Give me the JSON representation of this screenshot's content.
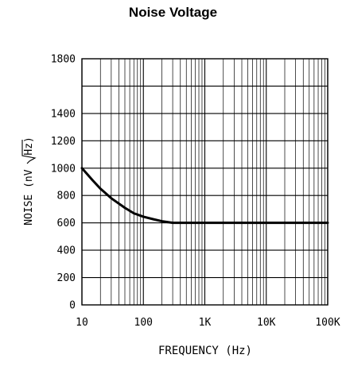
{
  "chart_data": {
    "type": "line",
    "title": "Noise Voltage",
    "xlabel": "FREQUENCY (Hz)",
    "ylabel_prefix": "NOISE (nV ",
    "ylabel_radicand": "Hz",
    "ylabel_suffix": ")",
    "x_scale": "log",
    "xlim": [
      10,
      100000
    ],
    "ylim": [
      0,
      1800
    ],
    "grid": true,
    "x_ticks": [
      {
        "value": 10,
        "label": "10"
      },
      {
        "value": 100,
        "label": "100"
      },
      {
        "value": 1000,
        "label": "1K"
      },
      {
        "value": 10000,
        "label": "10K"
      },
      {
        "value": 100000,
        "label": "100K"
      }
    ],
    "y_ticks": [
      {
        "value": 0,
        "label": "0"
      },
      {
        "value": 200,
        "label": "200"
      },
      {
        "value": 400,
        "label": "400"
      },
      {
        "value": 600,
        "label": "600"
      },
      {
        "value": 800,
        "label": "800"
      },
      {
        "value": 1000,
        "label": "1000"
      },
      {
        "value": 1200,
        "label": "1200"
      },
      {
        "value": 1400,
        "label": "1400"
      },
      {
        "value": 1800,
        "label": "1800"
      }
    ],
    "y_gridlines": [
      0,
      200,
      400,
      600,
      800,
      1000,
      1200,
      1400,
      1600,
      1800
    ],
    "series": [
      {
        "x": [
          10,
          15,
          20,
          30,
          50,
          70,
          100,
          150,
          200,
          300,
          1000,
          10000,
          100000
        ],
        "y": [
          1000,
          910,
          850,
          780,
          710,
          670,
          645,
          625,
          612,
          600,
          600,
          600,
          600
        ]
      }
    ]
  }
}
